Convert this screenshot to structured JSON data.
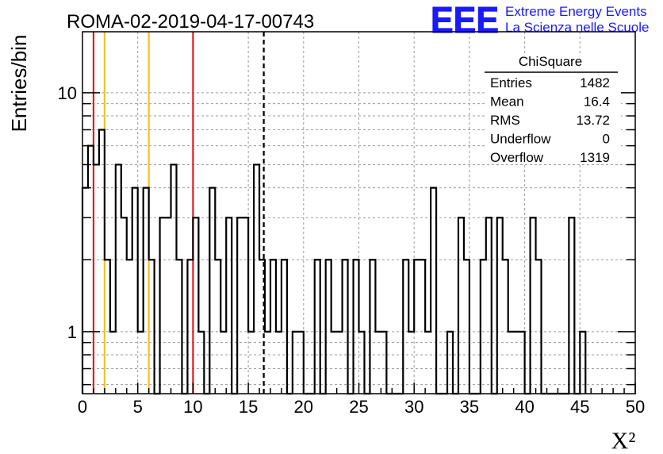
{
  "chart_data": {
    "type": "bar",
    "histogram": true,
    "title": "ROMA-02-2019-04-17-00743",
    "xlabel": "X²",
    "ylabel": "Entries/bin",
    "xlim": [
      0,
      50
    ],
    "ylim": [
      0.55,
      18
    ],
    "yscale": "log",
    "grid": true,
    "bin_width": 0.5,
    "x_ticks": [
      "0",
      "5",
      "10",
      "15",
      "20",
      "25",
      "30",
      "35",
      "40",
      "45",
      "50"
    ],
    "y_ticks": [
      "1",
      "10"
    ],
    "values": [
      4,
      6,
      5,
      7,
      2,
      1,
      5,
      3,
      2,
      4,
      1,
      4,
      2,
      0,
      3,
      3,
      5,
      2,
      0,
      2,
      3,
      1,
      0,
      4,
      2,
      1,
      3,
      0,
      3,
      3,
      1,
      5,
      2,
      1,
      2,
      1,
      2,
      0,
      1,
      1,
      0,
      0,
      2,
      0,
      2,
      1,
      1,
      2,
      0,
      2,
      1,
      0,
      2,
      1,
      1,
      0,
      0,
      0,
      2,
      1,
      2,
      2,
      1,
      4,
      0,
      0,
      1,
      0,
      3,
      2,
      0,
      0,
      2,
      3,
      0,
      3,
      2,
      1,
      1,
      1,
      0,
      3,
      2,
      0,
      0,
      0,
      0,
      0,
      3,
      0,
      1
    ],
    "vertical_lines": [
      {
        "x": 1.0,
        "color": "#d82020",
        "style": "solid"
      },
      {
        "x": 2.0,
        "color": "#f2c029",
        "style": "solid"
      },
      {
        "x": 6.0,
        "color": "#f2c029",
        "style": "solid"
      },
      {
        "x": 10.0,
        "color": "#d82020",
        "style": "solid"
      },
      {
        "x": 16.4,
        "color": "#000000",
        "style": "dashed"
      }
    ],
    "stats": {
      "name": "ChiSquare",
      "rows": [
        {
          "label": "Entries",
          "value": "1482"
        },
        {
          "label": "Mean",
          "value": "16.4"
        },
        {
          "label": "RMS",
          "value": "13.72"
        },
        {
          "label": "Underflow",
          "value": "0"
        },
        {
          "label": "Overflow",
          "value": "1319"
        }
      ]
    }
  },
  "logo": {
    "letters": "EEE",
    "line1": "Extreme Energy Events",
    "line2": "La Scienza nelle Scuole",
    "color": "#1a1aff"
  }
}
